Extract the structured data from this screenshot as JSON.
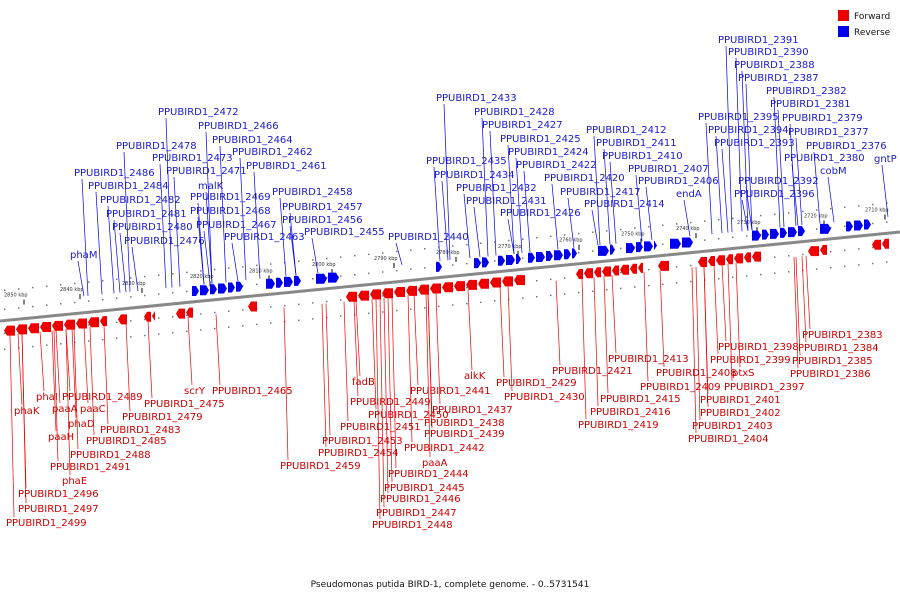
{
  "legend": [
    {
      "label": "Forward",
      "color": "#ee0000"
    },
    {
      "label": "Reverse",
      "color": "#0000ee"
    }
  ],
  "caption": "Pseudomonas putida BIRD-1, complete genome. - 0..5731541",
  "colors": {
    "forward": "#ee0000",
    "reverse": "#0000ee",
    "forward_text": "#cc0000",
    "reverse_text": "#1a1acc",
    "backbone": "#888888"
  },
  "ruler": [
    "2850 kbp",
    "2840 kbp",
    "2830 kbp",
    "2820 kbp",
    "2810 kbp",
    "2800 kbp",
    "2790 kbp",
    "2780 kbp",
    "2770 kbp",
    "2760 kbp",
    "2750 kbp",
    "2740 kbp",
    "2730 kbp",
    "2720 kbp",
    "2710 kbp"
  ],
  "reverse_labels": [
    "PPUBIRD1_2472",
    "PPUBIRD1_2466",
    "PPUBIRD1_2478",
    "PPUBIRD1_2464",
    "PPUBIRD1_2473",
    "PPUBIRD1_2462",
    "PPUBIRD1_2486",
    "PPUBIRD1_2471",
    "PPUBIRD1_2461",
    "PPUBIRD1_2484",
    "malK",
    "PPUBIRD1_2458",
    "PPUBIRD1_2482",
    "PPUBIRD1_2469",
    "PPUBIRD1_2457",
    "PPUBIRD1_2481",
    "PPUBIRD1_2468",
    "PPUBIRD1_2456",
    "PPUBIRD1_2480",
    "PPUBIRD1_2467",
    "PPUBIRD1_2455",
    "PPUBIRD1_2476",
    "PPUBIRD1_2463",
    "phaM",
    "PPUBIRD1_2440",
    "PPUBIRD1_2433",
    "PPUBIRD1_2428",
    "PPUBIRD1_2427",
    "PPUBIRD1_2425",
    "PPUBIRD1_2424",
    "PPUBIRD1_2435",
    "PPUBIRD1_2422",
    "PPUBIRD1_2434",
    "PPUBIRD1_2420",
    "PPUBIRD1_2432",
    "PPUBIRD1_2417",
    "PPUBIRD1_2431",
    "PPUBIRD1_2414",
    "PPUBIRD1_2426",
    "PPUBIRD1_2412",
    "PPUBIRD1_2411",
    "PPUBIRD1_2410",
    "PPUBIRD1_2407",
    "PPUBIRD1_2406",
    "endA",
    "PPUBIRD1_2391",
    "PPUBIRD1_2390",
    "PPUBIRD1_2388",
    "PPUBIRD1_2387",
    "PPUBIRD1_2382",
    "PPUBIRD1_2381",
    "PPUBIRD1_2395",
    "PPUBIRD1_2379",
    "PPUBIRD1_2394",
    "PPUBIRD1_2377",
    "PPUBIRD1_2393",
    "PPUBIRD1_2376",
    "PPUBIRD1_2380",
    "gntP",
    "cobM",
    "PPUBIRD1_2392",
    "PPUBIRD1_2396"
  ],
  "forward_labels": [
    "phaI",
    "PPUBIRD1_2489",
    "phaK",
    "paaA",
    "paaC",
    "PPUBIRD1_2475",
    "scrY",
    "PPUBIRD1_2465",
    "phaD",
    "PPUBIRD1_2479",
    "PPUBIRD1_2483",
    "paaH",
    "PPUBIRD1_2485",
    "PPUBIRD1_2488",
    "PPUBIRD1_2491",
    "phaE",
    "PPUBIRD1_2496",
    "PPUBIRD1_2497",
    "PPUBIRD1_2499",
    "fadB",
    "PPUBIRD1_2449",
    "PPUBIRD1_2450",
    "PPUBIRD1_2451",
    "PPUBIRD1_2453",
    "PPUBIRD1_2454",
    "PPUBIRD1_2459",
    "alkK",
    "PPUBIRD1_2441",
    "PPUBIRD1_2437",
    "PPUBIRD1_2438",
    "PPUBIRD1_2439",
    "PPUBIRD1_2442",
    "paaA",
    "PPUBIRD1_2444",
    "PPUBIRD1_2445",
    "PPUBIRD1_2446",
    "PPUBIRD1_2447",
    "PPUBIRD1_2448",
    "PPUBIRD1_2429",
    "PPUBIRD1_2430",
    "PPUBIRD1_2413",
    "PPUBIRD1_2421",
    "PPUBIRD1_2408",
    "PPUBIRD1_2409",
    "PPUBIRD1_2415",
    "PPUBIRD1_2416",
    "PPUBIRD1_2419",
    "PPUBIRD1_2398",
    "PPUBIRD1_2399",
    "ptxS",
    "PPUBIRD1_2397",
    "PPUBIRD1_2401",
    "PPUBIRD1_2402",
    "PPUBIRD1_2403",
    "PPUBIRD1_2404",
    "PPUBIRD1_2383",
    "PPUBIRD1_2384",
    "PPUBIRD1_2385",
    "PPUBIRD1_2386"
  ]
}
